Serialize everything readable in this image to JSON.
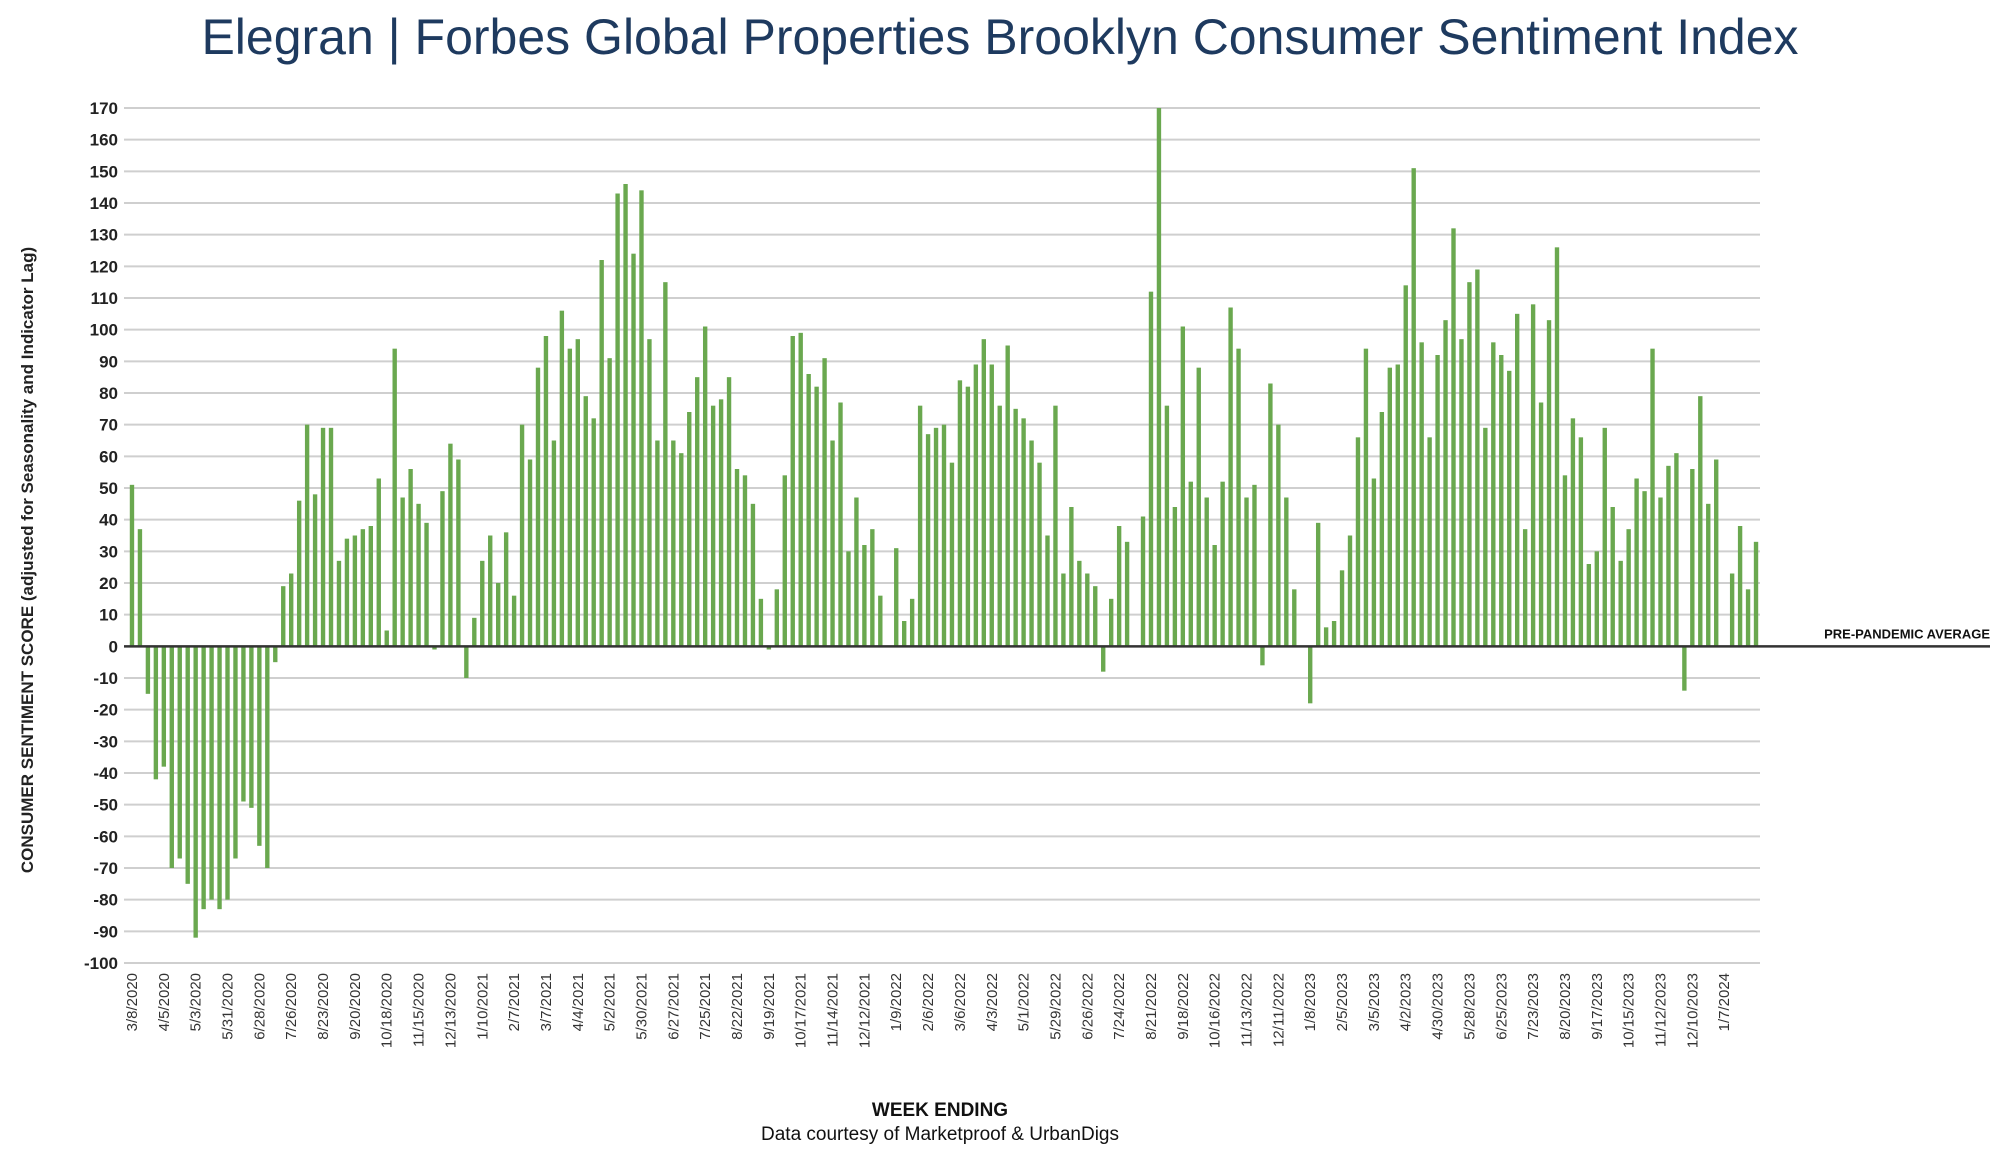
{
  "title": {
    "brand": "Elegran | Forbes Global Properties",
    "name": "Brooklyn Consumer Sentiment Index"
  },
  "xlabel": "WEEK ENDING",
  "source": "Data courtesy of Marketproof & UrbanDigs",
  "ylabel": "CONSUMER SENTIMENT SCORE (adjusted for Seasonality and Indicator Lag)",
  "reference_line": {
    "label": "PRE-PANDEMIC AVERAGE",
    "value": 0
  },
  "colors": {
    "bar": "#6aa84f",
    "grid": "#cfcfcf",
    "zero_line": "#333333",
    "title": "#1e3a5f"
  },
  "chart_data": {
    "type": "bar",
    "ylim": [
      -100,
      170
    ],
    "ytick_step": 10,
    "grid": true,
    "x_tick_labels": [
      "3/8/2020",
      "4/5/2020",
      "5/3/2020",
      "5/31/2020",
      "6/28/2020",
      "7/26/2020",
      "8/23/2020",
      "9/20/2020",
      "10/18/2020",
      "11/15/2020",
      "12/13/2020",
      "1/10/2021",
      "2/7/2021",
      "3/7/2021",
      "4/4/2021",
      "5/2/2021",
      "5/30/2021",
      "6/27/2021",
      "7/25/2021",
      "8/22/2021",
      "9/19/2021",
      "10/17/2021",
      "11/14/2021",
      "12/12/2021",
      "1/9/2022",
      "2/6/2022",
      "3/6/2022",
      "4/3/2022",
      "5/1/2022",
      "5/29/2022",
      "6/26/2022",
      "7/24/2022",
      "8/21/2022",
      "9/18/2022",
      "10/16/2022",
      "11/13/2022",
      "12/11/2022",
      "1/8/2023",
      "2/5/2023",
      "3/5/2023",
      "4/2/2023",
      "4/30/2023",
      "5/28/2023",
      "6/25/2023",
      "7/23/2023",
      "8/20/2023",
      "9/17/2023",
      "10/15/2023",
      "11/12/2023",
      "12/10/2023",
      "1/7/2024"
    ],
    "weeks_per_tick": 4,
    "values": [
      51,
      37,
      -15,
      -42,
      -38,
      -70,
      -67,
      -75,
      -92,
      -83,
      -80,
      -83,
      -80,
      -67,
      -49,
      -51,
      -63,
      -70,
      -5,
      19,
      23,
      46,
      70,
      48,
      69,
      69,
      27,
      34,
      35,
      37,
      38,
      53,
      5,
      94,
      47,
      56,
      45,
      39,
      -1,
      49,
      64,
      59,
      -10,
      9,
      27,
      35,
      20,
      36,
      16,
      70,
      59,
      88,
      98,
      65,
      106,
      94,
      97,
      79,
      72,
      122,
      91,
      143,
      146,
      124,
      144,
      97,
      65,
      115,
      65,
      61,
      74,
      85,
      101,
      76,
      78,
      85,
      56,
      54,
      45,
      15,
      -1,
      18,
      54,
      98,
      99,
      86,
      82,
      91,
      65,
      77,
      30,
      47,
      32,
      37,
      16,
      0,
      31,
      8,
      15,
      76,
      67,
      69,
      70,
      58,
      84,
      82,
      89,
      97,
      89,
      76,
      95,
      75,
      72,
      65,
      58,
      35,
      76,
      23,
      44,
      27,
      23,
      19,
      -8,
      15,
      38,
      33,
      0,
      41,
      112,
      170,
      76,
      44,
      101,
      52,
      88,
      47,
      32,
      52,
      107,
      94,
      47,
      51,
      -6,
      83,
      70,
      47,
      18,
      0,
      -18,
      39,
      6,
      8,
      24,
      35,
      66,
      94,
      53,
      74,
      88,
      89,
      114,
      151,
      96,
      66,
      92,
      103,
      132,
      97,
      115,
      119,
      69,
      96,
      92,
      87,
      105,
      37,
      108,
      77,
      103,
      126,
      54,
      72,
      66,
      26,
      30,
      69,
      44,
      27,
      37,
      53,
      49,
      94,
      47,
      57,
      61,
      -14,
      56,
      79,
      45,
      59,
      0,
      23,
      38,
      18,
      33
    ]
  }
}
